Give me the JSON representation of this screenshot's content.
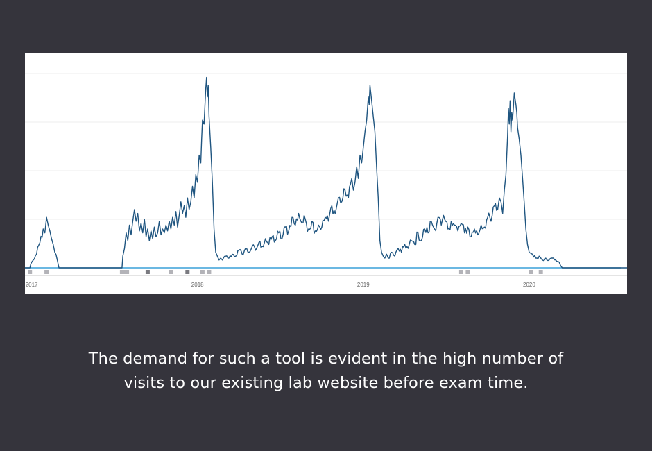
{
  "colors": {
    "background": "#35343c",
    "traffic_line": "#1f5580",
    "baseline": "#3aa0d8",
    "grid": "#ececec",
    "marker": "#b3b3b8",
    "marker_dark": "#7a7a80"
  },
  "chart_data": {
    "type": "line",
    "title": "",
    "xlabel": "",
    "ylabel": "",
    "x_tick_labels": [
      "2017",
      "2018",
      "2019",
      "2020"
    ],
    "y_axis_labels_visible": false,
    "grid": "horizontal",
    "xlim": [
      2016.96,
      2020.59
    ],
    "ylim": [
      0,
      100
    ],
    "series": [
      {
        "points": [
          [
            2016.95,
            0
          ],
          [
            2016.99,
            0
          ],
          [
            2016.995,
            2
          ],
          [
            2017.01,
            4
          ],
          [
            2017.03,
            7
          ],
          [
            2017.05,
            13
          ],
          [
            2017.07,
            20
          ],
          [
            2017.08,
            18
          ],
          [
            2017.09,
            26
          ],
          [
            2017.1,
            22
          ],
          [
            2017.11,
            19
          ],
          [
            2017.12,
            15
          ],
          [
            2017.13,
            12
          ],
          [
            2017.14,
            8
          ],
          [
            2017.155,
            4
          ],
          [
            2017.165,
            0
          ],
          [
            2017.545,
            0
          ],
          [
            2017.55,
            6
          ],
          [
            2017.56,
            10
          ],
          [
            2017.57,
            18
          ],
          [
            2017.58,
            14
          ],
          [
            2017.59,
            22
          ],
          [
            2017.6,
            17
          ],
          [
            2017.61,
            24
          ],
          [
            2017.62,
            30
          ],
          [
            2017.63,
            24
          ],
          [
            2017.64,
            28
          ],
          [
            2017.65,
            19
          ],
          [
            2017.66,
            23
          ],
          [
            2017.67,
            18
          ],
          [
            2017.68,
            25
          ],
          [
            2017.69,
            16
          ],
          [
            2017.7,
            20
          ],
          [
            2017.71,
            14
          ],
          [
            2017.72,
            19
          ],
          [
            2017.73,
            15
          ],
          [
            2017.74,
            21
          ],
          [
            2017.75,
            16
          ],
          [
            2017.76,
            18
          ],
          [
            2017.77,
            24
          ],
          [
            2017.78,
            17
          ],
          [
            2017.79,
            20
          ],
          [
            2017.8,
            18
          ],
          [
            2017.81,
            22
          ],
          [
            2017.82,
            19
          ],
          [
            2017.83,
            24
          ],
          [
            2017.84,
            20
          ],
          [
            2017.85,
            26
          ],
          [
            2017.86,
            22
          ],
          [
            2017.87,
            29
          ],
          [
            2017.88,
            21
          ],
          [
            2017.89,
            27
          ],
          [
            2017.9,
            34
          ],
          [
            2017.91,
            28
          ],
          [
            2017.92,
            32
          ],
          [
            2017.93,
            26
          ],
          [
            2017.94,
            36
          ],
          [
            2017.95,
            30
          ],
          [
            2017.96,
            34
          ],
          [
            2017.97,
            42
          ],
          [
            2017.98,
            36
          ],
          [
            2017.99,
            48
          ],
          [
            2018.0,
            44
          ],
          [
            2018.01,
            58
          ],
          [
            2018.02,
            54
          ],
          [
            2018.025,
            66
          ],
          [
            2018.03,
            76
          ],
          [
            2018.04,
            74
          ],
          [
            2018.05,
            92
          ],
          [
            2018.055,
            98
          ],
          [
            2018.06,
            88
          ],
          [
            2018.065,
            94
          ],
          [
            2018.07,
            78
          ],
          [
            2018.08,
            62
          ],
          [
            2018.09,
            44
          ],
          [
            2018.1,
            20
          ],
          [
            2018.11,
            8
          ],
          [
            2018.12,
            6
          ],
          [
            2018.13,
            4
          ],
          [
            2018.14,
            5
          ],
          [
            2018.15,
            4
          ],
          [
            2018.17,
            6
          ],
          [
            2018.19,
            5
          ],
          [
            2018.21,
            7
          ],
          [
            2018.23,
            6
          ],
          [
            2018.25,
            9
          ],
          [
            2018.27,
            7
          ],
          [
            2018.29,
            10
          ],
          [
            2018.31,
            8
          ],
          [
            2018.33,
            11
          ],
          [
            2018.35,
            9
          ],
          [
            2018.37,
            13
          ],
          [
            2018.39,
            11
          ],
          [
            2018.41,
            15
          ],
          [
            2018.43,
            12
          ],
          [
            2018.45,
            16
          ],
          [
            2018.47,
            14
          ],
          [
            2018.49,
            18
          ],
          [
            2018.51,
            15
          ],
          [
            2018.53,
            21
          ],
          [
            2018.55,
            19
          ],
          [
            2018.57,
            26
          ],
          [
            2018.59,
            22
          ],
          [
            2018.61,
            28
          ],
          [
            2018.63,
            23
          ],
          [
            2018.65,
            25
          ],
          [
            2018.67,
            20
          ],
          [
            2018.69,
            24
          ],
          [
            2018.71,
            19
          ],
          [
            2018.73,
            22
          ],
          [
            2018.75,
            21
          ],
          [
            2018.77,
            26
          ],
          [
            2018.79,
            24
          ],
          [
            2018.81,
            32
          ],
          [
            2018.83,
            28
          ],
          [
            2018.85,
            36
          ],
          [
            2018.87,
            34
          ],
          [
            2018.89,
            40
          ],
          [
            2018.91,
            36
          ],
          [
            2018.93,
            46
          ],
          [
            2018.94,
            40
          ],
          [
            2018.95,
            44
          ],
          [
            2018.96,
            52
          ],
          [
            2018.97,
            46
          ],
          [
            2018.98,
            58
          ],
          [
            2018.99,
            54
          ],
          [
            2019.0,
            62
          ],
          [
            2019.01,
            70
          ],
          [
            2019.02,
            76
          ],
          [
            2019.03,
            88
          ],
          [
            2019.035,
            84
          ],
          [
            2019.04,
            94
          ],
          [
            2019.045,
            90
          ],
          [
            2019.05,
            86
          ],
          [
            2019.06,
            78
          ],
          [
            2019.07,
            70
          ],
          [
            2019.08,
            52
          ],
          [
            2019.09,
            36
          ],
          [
            2019.1,
            14
          ],
          [
            2019.11,
            8
          ],
          [
            2019.12,
            6
          ],
          [
            2019.13,
            5
          ],
          [
            2019.14,
            7
          ],
          [
            2019.15,
            5
          ],
          [
            2019.17,
            8
          ],
          [
            2019.19,
            6
          ],
          [
            2019.21,
            10
          ],
          [
            2019.23,
            8
          ],
          [
            2019.25,
            12
          ],
          [
            2019.27,
            10
          ],
          [
            2019.29,
            14
          ],
          [
            2019.31,
            12
          ],
          [
            2019.33,
            18
          ],
          [
            2019.35,
            14
          ],
          [
            2019.37,
            20
          ],
          [
            2019.39,
            18
          ],
          [
            2019.41,
            24
          ],
          [
            2019.43,
            20
          ],
          [
            2019.45,
            26
          ],
          [
            2019.47,
            22
          ],
          [
            2019.49,
            25
          ],
          [
            2019.51,
            20
          ],
          [
            2019.53,
            24
          ],
          [
            2019.55,
            22
          ],
          [
            2019.57,
            19
          ],
          [
            2019.59,
            23
          ],
          [
            2019.61,
            18
          ],
          [
            2019.63,
            21
          ],
          [
            2019.65,
            16
          ],
          [
            2019.67,
            20
          ],
          [
            2019.69,
            17
          ],
          [
            2019.71,
            22
          ],
          [
            2019.73,
            21
          ],
          [
            2019.75,
            26
          ],
          [
            2019.77,
            24
          ],
          [
            2019.79,
            32
          ],
          [
            2019.81,
            30
          ],
          [
            2019.82,
            36
          ],
          [
            2019.83,
            34
          ],
          [
            2019.84,
            28
          ],
          [
            2019.85,
            40
          ],
          [
            2019.86,
            48
          ],
          [
            2019.865,
            58
          ],
          [
            2019.87,
            68
          ],
          [
            2019.875,
            82
          ],
          [
            2019.88,
            74
          ],
          [
            2019.885,
            86
          ],
          [
            2019.89,
            70
          ],
          [
            2019.895,
            80
          ],
          [
            2019.9,
            76
          ],
          [
            2019.91,
            90
          ],
          [
            2019.92,
            84
          ],
          [
            2019.925,
            80
          ],
          [
            2019.93,
            72
          ],
          [
            2019.94,
            66
          ],
          [
            2019.95,
            58
          ],
          [
            2019.96,
            46
          ],
          [
            2019.97,
            34
          ],
          [
            2019.98,
            20
          ],
          [
            2019.99,
            12
          ],
          [
            2020.0,
            8
          ],
          [
            2020.02,
            7
          ],
          [
            2020.04,
            5
          ],
          [
            2020.06,
            6
          ],
          [
            2020.08,
            4
          ],
          [
            2020.1,
            5
          ],
          [
            2020.12,
            4
          ],
          [
            2020.14,
            5
          ],
          [
            2020.16,
            4
          ],
          [
            2020.18,
            3
          ],
          [
            2020.19,
            1
          ],
          [
            2020.2,
            0
          ],
          [
            2020.59,
            0
          ]
        ]
      }
    ],
    "baseline_y": 0,
    "period_markers": [
      {
        "x": 2016.99,
        "shade": "light"
      },
      {
        "x": 2017.09,
        "shade": "light"
      },
      {
        "x": 2017.545,
        "shade": "light"
      },
      {
        "x": 2017.555,
        "shade": "light"
      },
      {
        "x": 2017.565,
        "shade": "light"
      },
      {
        "x": 2017.575,
        "shade": "light"
      },
      {
        "x": 2017.7,
        "shade": "dark"
      },
      {
        "x": 2017.84,
        "shade": "light"
      },
      {
        "x": 2017.94,
        "shade": "dark"
      },
      {
        "x": 2018.03,
        "shade": "light"
      },
      {
        "x": 2018.07,
        "shade": "light"
      },
      {
        "x": 2019.59,
        "shade": "light"
      },
      {
        "x": 2019.63,
        "shade": "light"
      },
      {
        "x": 2020.01,
        "shade": "light"
      },
      {
        "x": 2020.07,
        "shade": "light"
      }
    ]
  },
  "caption": {
    "line1": "The demand for such a tool is evident in the high number of",
    "line2": "visits to our existing lab website before exam time."
  }
}
